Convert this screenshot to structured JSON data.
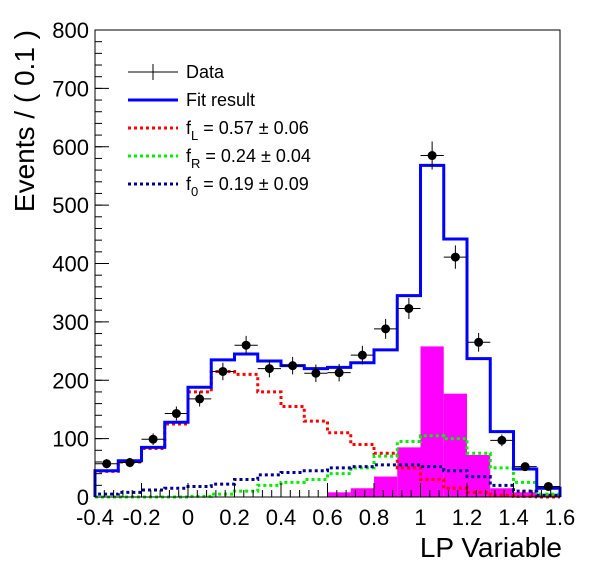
{
  "chart_data": {
    "type": "histogram",
    "xlabel": "LP Variable",
    "ylabel": "Events / ( 0.1 )",
    "xlim": [
      -0.4,
      1.6
    ],
    "ylim": [
      0,
      800
    ],
    "x_ticks": [
      "-0.4",
      "-0.2",
      "0",
      "0.2",
      "0.4",
      "0.6",
      "0.8",
      "1",
      "1.2",
      "1.4",
      "1.6"
    ],
    "y_ticks": [
      "0",
      "100",
      "200",
      "300",
      "400",
      "500",
      "600",
      "700",
      "800"
    ],
    "bin_width": 0.1,
    "data": {
      "name": "Data",
      "x": [
        -0.35,
        -0.25,
        -0.15,
        -0.05,
        0.05,
        0.15,
        0.25,
        0.35,
        0.45,
        0.55,
        0.65,
        0.75,
        0.85,
        0.95,
        1.05,
        1.15,
        1.25,
        1.35,
        1.45,
        1.55
      ],
      "y": [
        57,
        59,
        99,
        143,
        168,
        215,
        260,
        220,
        225,
        212,
        213,
        243,
        288,
        323,
        585,
        411,
        265,
        97,
        52,
        18
      ],
      "yerr": [
        8,
        8,
        10,
        12,
        13,
        15,
        16,
        15,
        15,
        15,
        15,
        16,
        17,
        18,
        24,
        20,
        16,
        10,
        7,
        4
      ]
    },
    "series": [
      {
        "name": "Fit result",
        "color": "#0000ff",
        "style": "solid",
        "bin_edges": [
          -0.4,
          -0.3,
          -0.2,
          -0.1,
          0.0,
          0.1,
          0.2,
          0.3,
          0.4,
          0.5,
          0.6,
          0.7,
          0.8,
          0.9,
          1.0,
          1.1,
          1.2,
          1.3,
          1.4,
          1.5,
          1.6
        ],
        "values": [
          45,
          62,
          85,
          128,
          188,
          235,
          245,
          233,
          225,
          220,
          222,
          230,
          252,
          345,
          568,
          442,
          237,
          112,
          48,
          15
        ]
      },
      {
        "name": "f",
        "subscript": "L",
        "value_text": " = 0.57 ± 0.06",
        "color": "#ff0000",
        "style": "dotted",
        "bin_edges": [
          -0.4,
          -0.3,
          -0.2,
          -0.1,
          0.0,
          0.1,
          0.2,
          0.3,
          0.4,
          0.5,
          0.6,
          0.7,
          0.8,
          0.9,
          1.0,
          1.1,
          1.2,
          1.3,
          1.4,
          1.5,
          1.6
        ],
        "values": [
          44,
          60,
          83,
          125,
          180,
          215,
          210,
          180,
          155,
          130,
          110,
          90,
          75,
          50,
          30,
          15,
          8,
          3,
          1,
          0
        ]
      },
      {
        "name": "f",
        "subscript": "R",
        "value_text": " = 0.24 ± 0.04",
        "color": "#00ee00",
        "style": "dotted",
        "bin_edges": [
          -0.4,
          -0.3,
          -0.2,
          -0.1,
          0.0,
          0.1,
          0.2,
          0.3,
          0.4,
          0.5,
          0.6,
          0.7,
          0.8,
          0.9,
          1.0,
          1.1,
          1.2,
          1.3,
          1.4,
          1.5,
          1.6
        ],
        "values": [
          0,
          0,
          0,
          0,
          1,
          5,
          10,
          20,
          25,
          30,
          40,
          50,
          70,
          95,
          105,
          100,
          75,
          50,
          25,
          5
        ]
      },
      {
        "name": "f",
        "subscript": "0",
        "value_text": " = 0.19 ± 0.09",
        "color": "#00008b",
        "style": "dotted",
        "bin_edges": [
          -0.4,
          -0.3,
          -0.2,
          -0.1,
          0.0,
          0.1,
          0.2,
          0.3,
          0.4,
          0.5,
          0.6,
          0.7,
          0.8,
          0.9,
          1.0,
          1.1,
          1.2,
          1.3,
          1.4,
          1.5,
          1.6
        ],
        "values": [
          5,
          8,
          12,
          15,
          18,
          22,
          30,
          38,
          42,
          45,
          50,
          52,
          55,
          55,
          52,
          45,
          35,
          20,
          10,
          3
        ]
      }
    ],
    "filled_histogram": {
      "color": "#ff00ff",
      "bin_edges": [
        0.6,
        0.7,
        0.8,
        0.9,
        1.0,
        1.1,
        1.2,
        1.3,
        1.4,
        1.5,
        1.6
      ],
      "values": [
        8,
        15,
        35,
        85,
        258,
        177,
        72,
        15,
        8,
        4
      ]
    },
    "legend_position": "top-left"
  }
}
